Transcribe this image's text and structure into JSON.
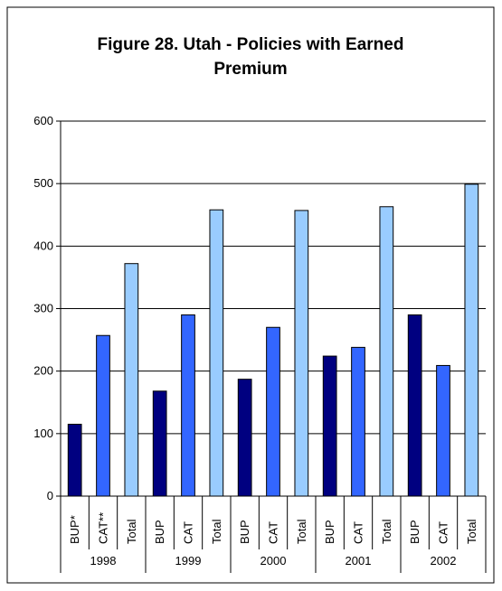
{
  "chart_data": {
    "type": "bar",
    "title_lines": [
      "Figure 28. Utah - Policies with Earned",
      "Premium"
    ],
    "xlabel": "",
    "ylabel": "",
    "ylim": [
      0,
      600
    ],
    "yticks": [
      0,
      100,
      200,
      300,
      400,
      500,
      600
    ],
    "grid": true,
    "legend": "none",
    "groups": [
      {
        "label": "1998",
        "bars": [
          {
            "category": "BUP*",
            "value": 115,
            "color": "#000080"
          },
          {
            "category": "CAT**",
            "value": 257,
            "color": "#3366ff"
          },
          {
            "category": "Total",
            "value": 372,
            "color": "#99ccff"
          }
        ]
      },
      {
        "label": "1999",
        "bars": [
          {
            "category": "BUP",
            "value": 168,
            "color": "#000080"
          },
          {
            "category": "CAT",
            "value": 290,
            "color": "#3366ff"
          },
          {
            "category": "Total",
            "value": 458,
            "color": "#99ccff"
          }
        ]
      },
      {
        "label": "2000",
        "bars": [
          {
            "category": "BUP",
            "value": 187,
            "color": "#000080"
          },
          {
            "category": "CAT",
            "value": 270,
            "color": "#3366ff"
          },
          {
            "category": "Total",
            "value": 457,
            "color": "#99ccff"
          }
        ]
      },
      {
        "label": "2001",
        "bars": [
          {
            "category": "BUP",
            "value": 224,
            "color": "#000080"
          },
          {
            "category": "CAT",
            "value": 238,
            "color": "#3366ff"
          },
          {
            "category": "Total",
            "value": 463,
            "color": "#99ccff"
          }
        ]
      },
      {
        "label": "2002",
        "bars": [
          {
            "category": "BUP",
            "value": 290,
            "color": "#000080"
          },
          {
            "category": "CAT",
            "value": 209,
            "color": "#3366ff"
          },
          {
            "category": "Total",
            "value": 499,
            "color": "#99ccff"
          }
        ]
      }
    ]
  }
}
